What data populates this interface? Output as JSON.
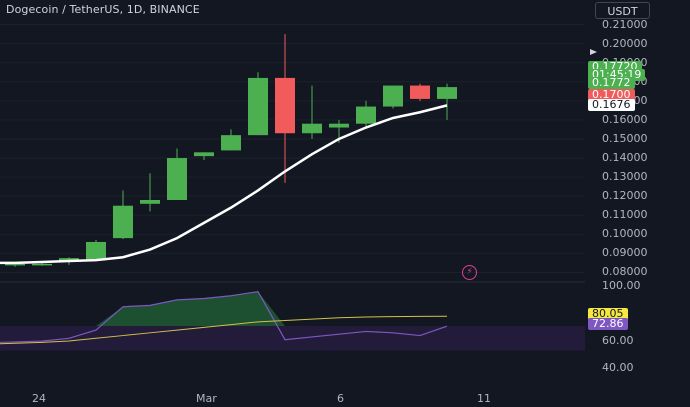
{
  "header": {
    "symbol_title": "Dogecoin / TetherUS, 1D, BINANCE",
    "currency": "USDT"
  },
  "price_axis": {
    "ticks": [
      "0.21000",
      "0.20000",
      "0.19000",
      "0.18000",
      "0.17000",
      "0.16000",
      "0.15000",
      "0.14000",
      "0.13000",
      "0.12000",
      "0.11000",
      "0.10000",
      "0.09000",
      "0.08000"
    ]
  },
  "price_tags": {
    "last_price": "0.17720",
    "countdown": "01:45:19",
    "second_price": "0.1772",
    "red_level": "0.1700",
    "ma_value": "0.1676"
  },
  "oscillator_axis": {
    "ticks": [
      "100.00",
      "60.00",
      "40.00"
    ],
    "value_1": "80.05",
    "value_2": "72.86"
  },
  "time_axis": {
    "labels": [
      "24",
      "Mar",
      "6",
      "11"
    ]
  },
  "colors": {
    "background": "#131722",
    "up": "#4caf50",
    "down": "#f25b5b",
    "ma_line": "#ffffff",
    "osc_line": "#7e57c2",
    "signal_line": "#d4c04a",
    "yellow_tag": "#f5e842",
    "purple_tag": "#7e57c2"
  },
  "chart_data": {
    "type": "candlestick",
    "price_ylim": [
      0.075,
      0.215
    ],
    "candles": [
      {
        "o": 0.084,
        "h": 0.085,
        "l": 0.083,
        "c": 0.0845
      },
      {
        "o": 0.084,
        "h": 0.085,
        "l": 0.0835,
        "c": 0.0845
      },
      {
        "o": 0.0855,
        "h": 0.088,
        "l": 0.084,
        "c": 0.0875
      },
      {
        "o": 0.087,
        "h": 0.097,
        "l": 0.0865,
        "c": 0.096
      },
      {
        "o": 0.098,
        "h": 0.123,
        "l": 0.0975,
        "c": 0.115
      },
      {
        "o": 0.116,
        "h": 0.132,
        "l": 0.112,
        "c": 0.118
      },
      {
        "o": 0.118,
        "h": 0.145,
        "l": 0.118,
        "c": 0.14
      },
      {
        "o": 0.141,
        "h": 0.143,
        "l": 0.139,
        "c": 0.143
      },
      {
        "o": 0.144,
        "h": 0.155,
        "l": 0.144,
        "c": 0.152
      },
      {
        "o": 0.152,
        "h": 0.185,
        "l": 0.152,
        "c": 0.182
      },
      {
        "o": 0.182,
        "h": 0.205,
        "l": 0.127,
        "c": 0.153
      },
      {
        "o": 0.153,
        "h": 0.178,
        "l": 0.15,
        "c": 0.158
      },
      {
        "o": 0.156,
        "h": 0.16,
        "l": 0.148,
        "c": 0.158
      },
      {
        "o": 0.158,
        "h": 0.17,
        "l": 0.156,
        "c": 0.167
      },
      {
        "o": 0.167,
        "h": 0.178,
        "l": 0.166,
        "c": 0.178
      },
      {
        "o": 0.178,
        "h": 0.179,
        "l": 0.17,
        "c": 0.171
      },
      {
        "o": 0.171,
        "h": 0.179,
        "l": 0.16,
        "c": 0.1772
      }
    ],
    "moving_average": [
      0.085,
      0.0855,
      0.086,
      0.0865,
      0.088,
      0.092,
      0.098,
      0.106,
      0.114,
      0.123,
      0.133,
      0.142,
      0.15,
      0.156,
      0.161,
      0.164,
      0.1676
    ],
    "oscillator": {
      "ylim": [
        30,
        105
      ],
      "main": [
        61,
        62,
        64,
        70,
        87,
        88,
        92,
        93,
        95,
        98,
        63,
        65,
        67,
        69,
        68,
        66,
        72.86
      ],
      "signal": [
        60,
        61,
        62,
        64,
        66,
        68,
        70,
        72,
        74,
        76,
        77,
        78,
        79,
        79.5,
        79.8,
        80,
        80.05
      ],
      "band": [
        55,
        73
      ]
    }
  }
}
